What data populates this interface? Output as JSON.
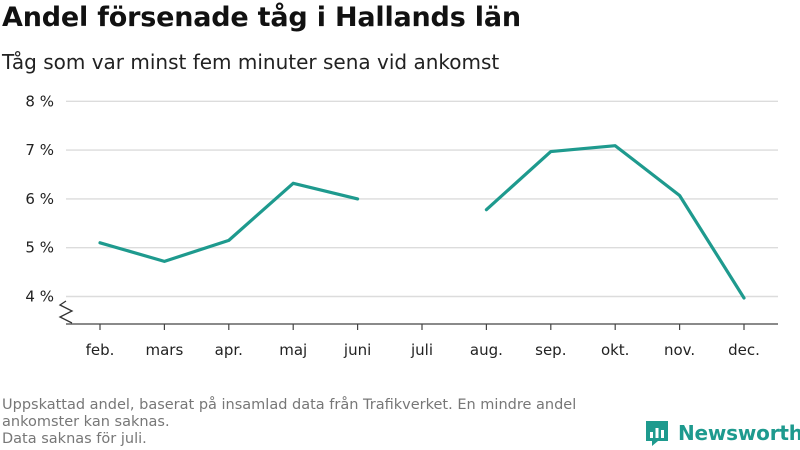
{
  "header": {
    "title": "Andel försenade tåg i Hallands län",
    "subtitle": "Tåg som var minst fem minuter sena vid ankomst"
  },
  "footer": {
    "note_line1": "Uppskattad andel, baserat på insamlad data från Trafikverket. En mindre andel ankomster kan saknas.",
    "note_line2": "Data saknas för juli."
  },
  "brand": {
    "name": "Newsworthy",
    "icon": "newsworthy-logo-icon",
    "color": "#1e9a8e"
  },
  "chart_data": {
    "type": "line",
    "title": "Andel försenade tåg i Hallands län",
    "subtitle": "Tåg som var minst fem minuter sena vid ankomst",
    "categories": [
      "feb.",
      "mars",
      "apr.",
      "maj",
      "juni",
      "juli",
      "aug.",
      "sep.",
      "okt.",
      "nov.",
      "dec."
    ],
    "series": [
      {
        "values": [
          5.1,
          4.72,
          5.15,
          6.32,
          6.0,
          null,
          5.78,
          6.97,
          7.09,
          6.07,
          3.97
        ],
        "color": "#1e9a8e"
      }
    ],
    "y_ticks": [
      4,
      5,
      6,
      7,
      8
    ],
    "y_tick_labels": [
      "4 %",
      "5 %",
      "6 %",
      "7 %",
      "8 %"
    ],
    "ylim": [
      3.5,
      8
    ],
    "axis_break": true,
    "grid": true,
    "xlabel": "",
    "ylabel": ""
  }
}
